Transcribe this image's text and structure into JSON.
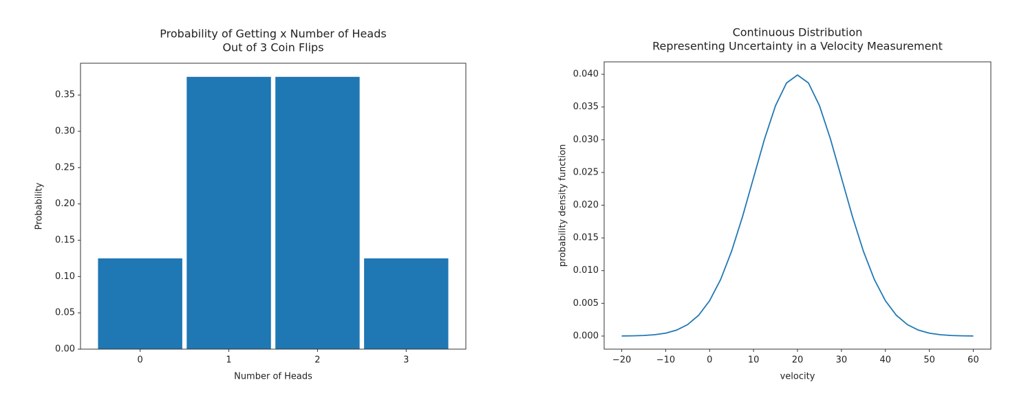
{
  "chart_data": [
    {
      "type": "bar",
      "title": [
        "Probability of Getting x Number of Heads",
        "Out of 3 Coin Flips"
      ],
      "x_label": "Number of Heads",
      "y_label": "Probability",
      "categories": [
        "0",
        "1",
        "2",
        "3"
      ],
      "values": [
        0.125,
        0.375,
        0.375,
        0.125
      ],
      "color": "#1f77b4",
      "ylim": [
        0,
        0.39375
      ],
      "yticks": [
        {
          "value": 0,
          "label": "0.00"
        },
        {
          "value": 0.05,
          "label": "0.05"
        },
        {
          "value": 0.1,
          "label": "0.10"
        },
        {
          "value": 0.15,
          "label": "0.15"
        },
        {
          "value": 0.2,
          "label": "0.20"
        },
        {
          "value": 0.25,
          "label": "0.25"
        },
        {
          "value": 0.3,
          "label": "0.30"
        },
        {
          "value": 0.35,
          "label": "0.35"
        }
      ]
    },
    {
      "type": "line",
      "title": [
        "Continuous Distribution",
        "Representing Uncertainty in a Velocity Measurement"
      ],
      "x_label": "velocity",
      "y_label": "probability density function",
      "color": "#1f77b4",
      "x": [
        -20,
        -17.5,
        -15,
        -12.5,
        -10,
        -7.5,
        -5,
        -2.5,
        0,
        2.5,
        5,
        7.5,
        10,
        12.5,
        15,
        17.5,
        20,
        22.5,
        25,
        27.5,
        30,
        32.5,
        35,
        37.5,
        40,
        42.5,
        45,
        47.5,
        50,
        52.5,
        55,
        57.5,
        60
      ],
      "values": [
        1.34e-05,
        3.53e-05,
        8.73e-05,
        0.000203,
        0.000443,
        0.000909,
        0.001753,
        0.003174,
        0.005399,
        0.008628,
        0.012952,
        0.018265,
        0.024197,
        0.030114,
        0.035207,
        0.038667,
        0.039894,
        0.038667,
        0.035207,
        0.030114,
        0.024197,
        0.018265,
        0.012952,
        0.008628,
        0.005399,
        0.003174,
        0.001753,
        0.000909,
        0.000443,
        0.000203,
        8.73e-05,
        3.53e-05,
        1.34e-05
      ],
      "xlim": [
        -24,
        64
      ],
      "ylim": [
        -0.002,
        0.0419
      ],
      "xticks": [
        {
          "value": -20,
          "label": "−20"
        },
        {
          "value": -10,
          "label": "−10"
        },
        0,
        10,
        20,
        30,
        40,
        50,
        60
      ],
      "yticks": [
        {
          "value": 0,
          "label": "0.000"
        },
        {
          "value": 0.005,
          "label": "0.005"
        },
        {
          "value": 0.01,
          "label": "0.010"
        },
        {
          "value": 0.015,
          "label": "0.015"
        },
        {
          "value": 0.02,
          "label": "0.020"
        },
        {
          "value": 0.025,
          "label": "0.025"
        },
        {
          "value": 0.03,
          "label": "0.030"
        },
        {
          "value": 0.035,
          "label": "0.035"
        },
        {
          "value": 0.04,
          "label": "0.040"
        }
      ]
    }
  ]
}
